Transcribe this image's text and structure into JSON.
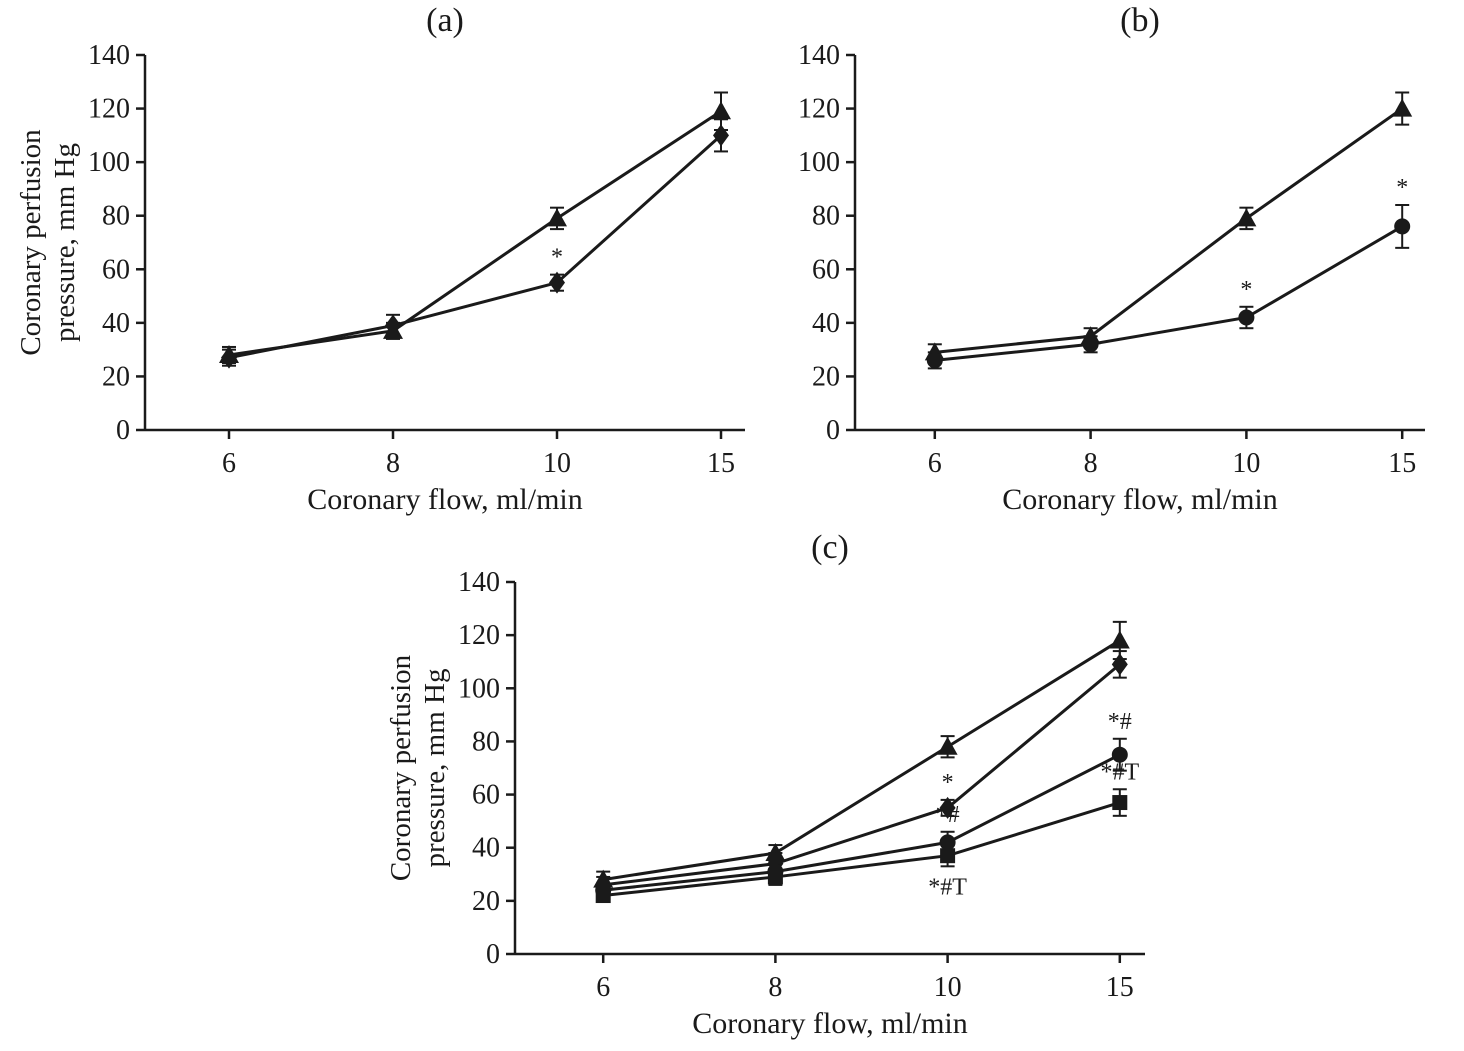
{
  "figure": {
    "background": "#ffffff",
    "ink_color": "#1a1a1a"
  },
  "chart_data": [
    {
      "type": "line",
      "title": "(a)",
      "xlabel": "Coronary flow, ml/min",
      "ylabel_lines": [
        "Coronary perfusion",
        "pressure, mm Hg"
      ],
      "x_ticks": [
        "6",
        "8",
        "10",
        "15"
      ],
      "ylim": [
        0,
        140
      ],
      "y_ticks": [
        0,
        20,
        40,
        60,
        80,
        100,
        120,
        140
      ],
      "grid": false,
      "legend": "none",
      "series": [
        {
          "name": "control-triangle",
          "marker": "triangle",
          "values": [
            28,
            37,
            79,
            119
          ],
          "errors": [
            3,
            3,
            4,
            7
          ],
          "labels": [
            null,
            null,
            null,
            null
          ]
        },
        {
          "name": "group-diamond",
          "marker": "diamond",
          "values": [
            27,
            39,
            55,
            110
          ],
          "errors": [
            3,
            4,
            3,
            6
          ],
          "labels": [
            null,
            null,
            {
              "text": "*",
              "side": "above"
            },
            null
          ]
        }
      ]
    },
    {
      "type": "line",
      "title": "(b)",
      "xlabel": "Coronary flow, ml/min",
      "ylabel_lines": [],
      "x_ticks": [
        "6",
        "8",
        "10",
        "15"
      ],
      "ylim": [
        0,
        140
      ],
      "y_ticks": [
        0,
        20,
        40,
        60,
        80,
        100,
        120,
        140
      ],
      "grid": false,
      "legend": "none",
      "series": [
        {
          "name": "control-triangle",
          "marker": "triangle",
          "values": [
            29,
            35,
            79,
            120
          ],
          "errors": [
            3,
            3,
            4,
            6
          ],
          "labels": [
            null,
            null,
            null,
            null
          ]
        },
        {
          "name": "group-circle",
          "marker": "circle",
          "values": [
            26,
            32,
            42,
            76
          ],
          "errors": [
            3,
            3,
            4,
            8
          ],
          "labels": [
            null,
            null,
            {
              "text": "*",
              "side": "above"
            },
            {
              "text": "*",
              "side": "above"
            }
          ]
        }
      ]
    },
    {
      "type": "line",
      "title": "(c)",
      "xlabel": "Coronary flow, ml/min",
      "ylabel_lines": [
        "Coronary perfusion",
        "pressure, mm Hg"
      ],
      "x_ticks": [
        "6",
        "8",
        "10",
        "15"
      ],
      "ylim": [
        0,
        140
      ],
      "y_ticks": [
        0,
        20,
        40,
        60,
        80,
        100,
        120,
        140
      ],
      "grid": false,
      "legend": "none",
      "series": [
        {
          "name": "control-triangle",
          "marker": "triangle",
          "values": [
            28,
            38,
            78,
            118
          ],
          "errors": [
            3,
            3,
            4,
            7
          ],
          "labels": [
            null,
            null,
            null,
            null
          ]
        },
        {
          "name": "group-diamond",
          "marker": "diamond",
          "values": [
            26,
            34,
            55,
            109
          ],
          "errors": [
            3,
            4,
            3,
            5
          ],
          "labels": [
            null,
            null,
            {
              "text": "*",
              "side": "above"
            },
            null
          ]
        },
        {
          "name": "group-circle",
          "marker": "circle",
          "values": [
            24,
            31,
            42,
            75
          ],
          "errors": [
            2,
            3,
            4,
            6
          ],
          "labels": [
            null,
            null,
            {
              "text": "*#",
              "side": "above"
            },
            {
              "text": "*#",
              "side": "above"
            }
          ]
        },
        {
          "name": "group-square",
          "marker": "square",
          "values": [
            22,
            29,
            37,
            57
          ],
          "errors": [
            2,
            3,
            4,
            5
          ],
          "labels": [
            null,
            null,
            {
              "text": "*#T",
              "side": "below"
            },
            {
              "text": "*#T",
              "side": "above"
            }
          ]
        }
      ]
    }
  ]
}
